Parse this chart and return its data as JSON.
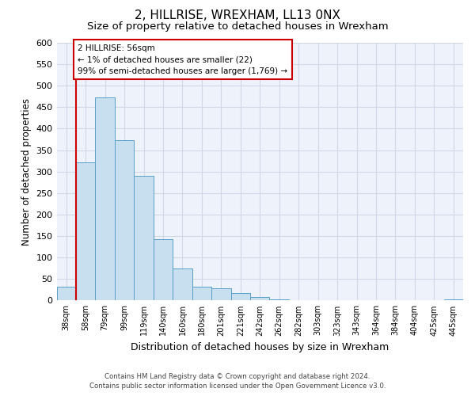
{
  "title": "2, HILLRISE, WREXHAM, LL13 0NX",
  "subtitle": "Size of property relative to detached houses in Wrexham",
  "xlabel": "Distribution of detached houses by size in Wrexham",
  "ylabel": "Number of detached properties",
  "bar_labels": [
    "38sqm",
    "58sqm",
    "79sqm",
    "99sqm",
    "119sqm",
    "140sqm",
    "160sqm",
    "180sqm",
    "201sqm",
    "221sqm",
    "242sqm",
    "262sqm",
    "282sqm",
    "303sqm",
    "323sqm",
    "343sqm",
    "364sqm",
    "384sqm",
    "404sqm",
    "425sqm",
    "445sqm"
  ],
  "bar_values": [
    32,
    322,
    473,
    373,
    290,
    143,
    75,
    32,
    29,
    17,
    8,
    3,
    1,
    1,
    0,
    0,
    0,
    0,
    0,
    0,
    2
  ],
  "bar_color": "#c8dff0",
  "bar_edge_color": "#5a9ec9",
  "highlight_bar_index": 1,
  "highlight_color": "#cc0000",
  "annotation_title": "2 HILLRISE: 56sqm",
  "annotation_line1": "← 1% of detached houses are smaller (22)",
  "annotation_line2": "99% of semi-detached houses are larger (1,769) →",
  "annotation_box_color": "#ffffff",
  "annotation_box_edge": "#cc0000",
  "ylim": [
    0,
    600
  ],
  "yticks": [
    0,
    50,
    100,
    150,
    200,
    250,
    300,
    350,
    400,
    450,
    500,
    550,
    600
  ],
  "footer_line1": "Contains HM Land Registry data © Crown copyright and database right 2024.",
  "footer_line2": "Contains public sector information licensed under the Open Government Licence v3.0.",
  "bg_color": "#eef2fb",
  "grid_color": "#d0d8e8",
  "title_fontsize": 11,
  "subtitle_fontsize": 9.5
}
